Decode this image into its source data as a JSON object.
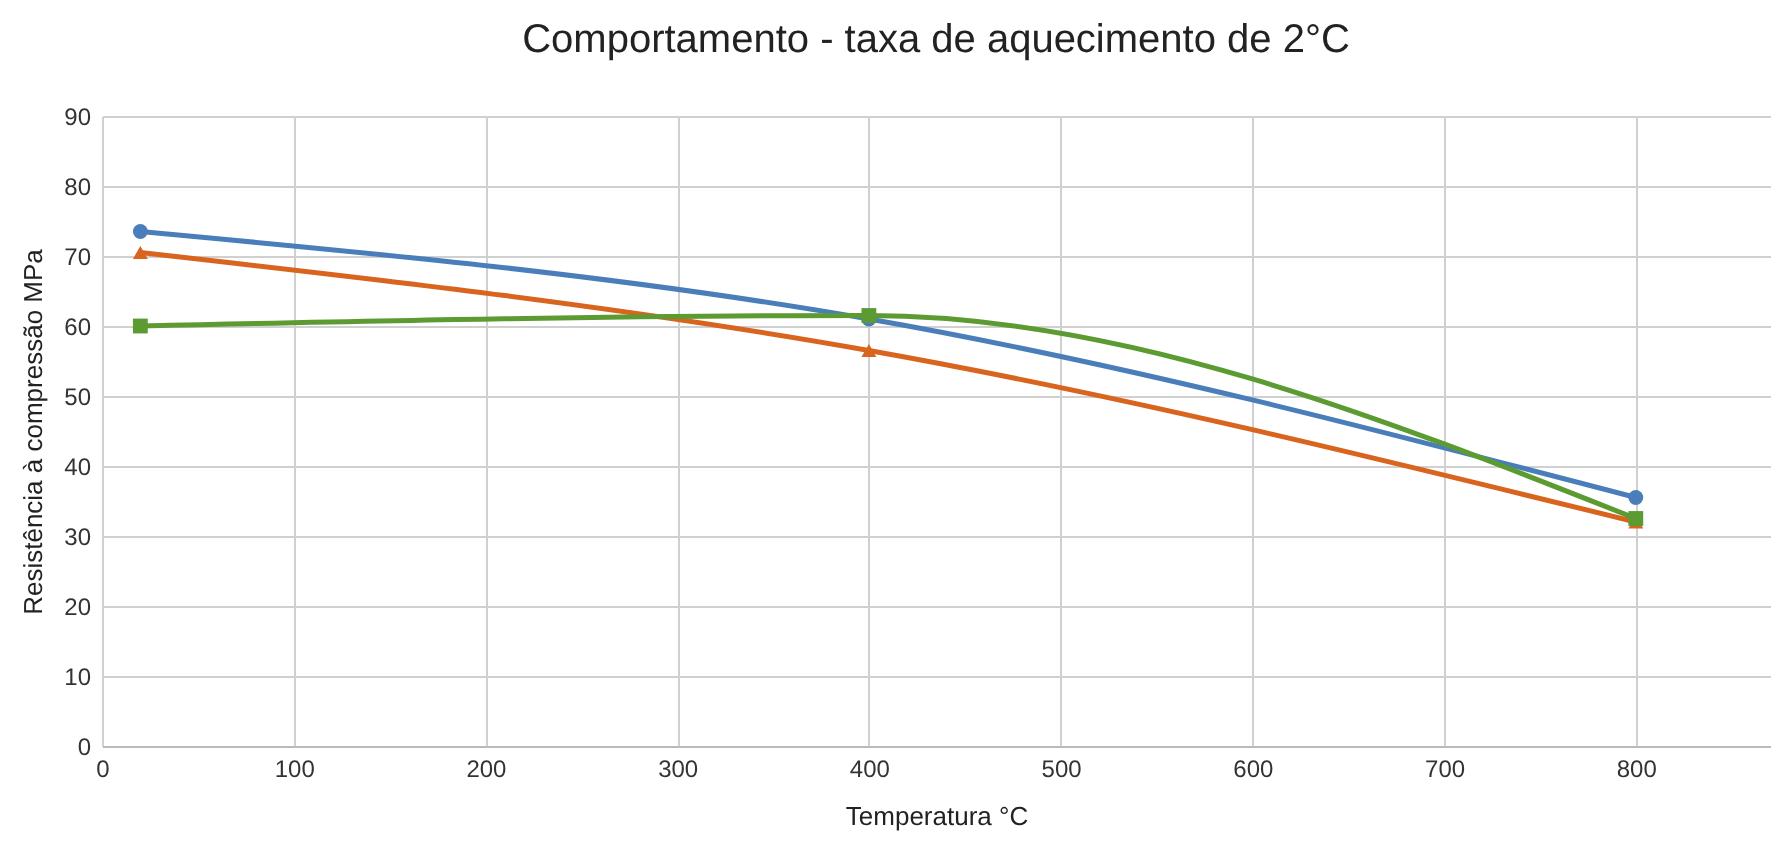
{
  "chart_data": {
    "type": "line",
    "title": "Comportamento - taxa de aquecimento de 2°C",
    "xlabel": "Temperatura °C",
    "ylabel": "Resistência à compressão MPa",
    "x": [
      20,
      400,
      800
    ],
    "series": [
      {
        "color": "#4a7ebb",
        "marker": "circle",
        "values": [
          73.5,
          61,
          35.5
        ]
      },
      {
        "color": "#d9641e",
        "marker": "triangle",
        "values": [
          70.5,
          56.5,
          32
        ]
      },
      {
        "color": "#5b9b31",
        "marker": "square",
        "values": [
          60,
          61.5,
          32.5
        ]
      }
    ],
    "xlim": [
      0,
      870
    ],
    "xticks": [
      0,
      100,
      200,
      300,
      400,
      500,
      600,
      700,
      800
    ],
    "ylim": [
      0,
      90
    ],
    "yticks": [
      0,
      10,
      20,
      30,
      40,
      50,
      60,
      70,
      80,
      90
    ],
    "grid": true,
    "line_style": "solid"
  }
}
